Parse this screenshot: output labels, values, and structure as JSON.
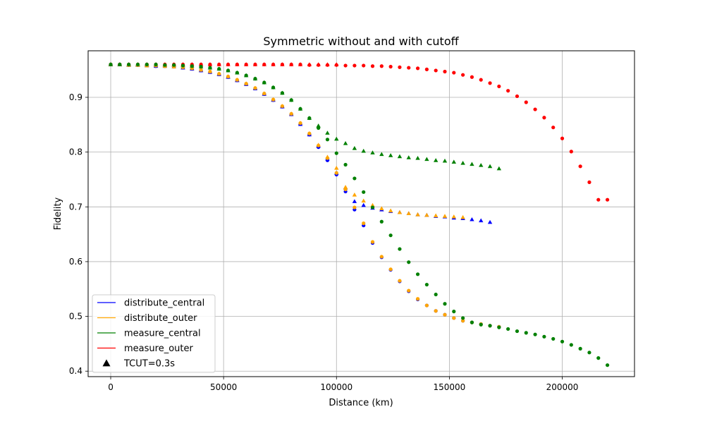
{
  "chart_data": {
    "type": "scatter",
    "title": "Symmetric without and with cutoff",
    "xlabel": "Distance (km)",
    "ylabel": "Fidelity",
    "xlim": [
      -10000,
      232000
    ],
    "ylim": [
      0.39,
      0.985
    ],
    "xticks": [
      0,
      50000,
      100000,
      150000,
      200000
    ],
    "yticks": [
      0.4,
      0.5,
      0.6,
      0.7,
      0.8,
      0.9
    ],
    "xtick_labels": [
      "0",
      "50000",
      "100000",
      "150000",
      "200000"
    ],
    "ytick_labels": [
      "0.4",
      "0.5",
      "0.6",
      "0.7",
      "0.8",
      "0.9"
    ],
    "grid": true,
    "legend_placement": "lower-left",
    "legend": [
      {
        "label": "distribute_central",
        "kind": "line",
        "color": "#0000ff"
      },
      {
        "label": "distribute_outer",
        "kind": "line",
        "color": "#ffa500"
      },
      {
        "label": "measure_central",
        "kind": "line",
        "color": "#008000"
      },
      {
        "label": "measure_outer",
        "kind": "line",
        "color": "#ff0000"
      },
      {
        "label": "TCUT=0.3s",
        "kind": "triangle",
        "color": "#000000"
      }
    ],
    "series": [
      {
        "legend": "measure_outer",
        "marker": "triangle",
        "color": "#ff0000",
        "x": [
          0,
          4000,
          8000,
          12000,
          16000,
          20000,
          24000,
          28000,
          32000,
          36000,
          40000,
          44000,
          48000,
          52000,
          56000,
          60000,
          64000,
          68000,
          72000,
          76000,
          80000,
          84000,
          88000,
          92000,
          96000,
          100000
        ],
        "y": [
          0.96,
          0.96,
          0.96,
          0.96,
          0.96,
          0.96,
          0.96,
          0.96,
          0.96,
          0.96,
          0.96,
          0.96,
          0.96,
          0.96,
          0.96,
          0.96,
          0.96,
          0.96,
          0.96,
          0.96,
          0.96,
          0.96,
          0.96,
          0.96,
          0.96,
          0.96
        ]
      },
      {
        "legend": "distribute_central",
        "marker": "triangle",
        "color": "#0000ff",
        "x": [
          0,
          4000,
          8000,
          12000,
          16000,
          20000,
          24000,
          28000,
          32000,
          36000,
          40000,
          44000,
          48000,
          52000,
          56000,
          60000,
          64000,
          68000,
          72000,
          76000,
          80000,
          84000,
          88000,
          92000,
          96000,
          100000,
          104000,
          108000,
          112000,
          116000,
          120000,
          124000,
          128000,
          132000,
          136000,
          140000,
          144000,
          148000,
          152000,
          156000,
          160000,
          164000,
          168000
        ],
        "y": [
          0.96,
          0.96,
          0.959,
          0.959,
          0.958,
          0.957,
          0.957,
          0.956,
          0.954,
          0.952,
          0.949,
          0.946,
          0.942,
          0.937,
          0.931,
          0.924,
          0.916,
          0.906,
          0.895,
          0.883,
          0.869,
          0.851,
          0.832,
          0.811,
          0.788,
          0.762,
          0.735,
          0.71,
          0.703,
          0.698,
          0.695,
          0.692,
          0.69,
          0.688,
          0.686,
          0.685,
          0.683,
          0.682,
          0.68,
          0.679,
          0.677,
          0.675,
          0.672
        ]
      },
      {
        "legend": "distribute_outer",
        "marker": "triangle",
        "color": "#ffa500",
        "x": [
          0,
          4000,
          8000,
          12000,
          16000,
          20000,
          24000,
          28000,
          32000,
          36000,
          40000,
          44000,
          48000,
          52000,
          56000,
          60000,
          64000,
          68000,
          72000,
          76000,
          80000,
          84000,
          88000,
          92000,
          96000,
          100000,
          104000,
          108000,
          112000,
          116000,
          120000,
          124000,
          128000,
          132000,
          136000,
          140000,
          144000,
          148000,
          152000,
          156000
        ],
        "y": [
          0.96,
          0.96,
          0.959,
          0.959,
          0.958,
          0.958,
          0.957,
          0.956,
          0.955,
          0.953,
          0.95,
          0.947,
          0.943,
          0.938,
          0.932,
          0.925,
          0.917,
          0.907,
          0.896,
          0.884,
          0.87,
          0.853,
          0.834,
          0.813,
          0.791,
          0.771,
          0.736,
          0.722,
          0.711,
          0.703,
          0.697,
          0.693,
          0.69,
          0.688,
          0.686,
          0.685,
          0.684,
          0.683,
          0.682,
          0.681
        ]
      },
      {
        "legend": "measure_central",
        "marker": "triangle",
        "color": "#008000",
        "x": [
          0,
          4000,
          8000,
          12000,
          16000,
          20000,
          24000,
          28000,
          32000,
          36000,
          40000,
          44000,
          48000,
          52000,
          56000,
          60000,
          64000,
          68000,
          72000,
          76000,
          80000,
          84000,
          88000,
          92000,
          96000,
          100000,
          104000,
          108000,
          112000,
          116000,
          120000,
          124000,
          128000,
          132000,
          136000,
          140000,
          144000,
          148000,
          152000,
          156000,
          160000,
          164000,
          168000,
          172000
        ],
        "y": [
          0.96,
          0.96,
          0.96,
          0.96,
          0.96,
          0.96,
          0.959,
          0.959,
          0.958,
          0.957,
          0.956,
          0.954,
          0.952,
          0.949,
          0.945,
          0.94,
          0.934,
          0.927,
          0.918,
          0.908,
          0.895,
          0.879,
          0.862,
          0.848,
          0.835,
          0.824,
          0.816,
          0.807,
          0.802,
          0.799,
          0.796,
          0.794,
          0.792,
          0.79,
          0.789,
          0.787,
          0.785,
          0.784,
          0.782,
          0.78,
          0.778,
          0.776,
          0.774,
          0.77
        ]
      },
      {
        "legend": "measure_outer",
        "marker": "circle",
        "color": "#ff0000",
        "x": [
          0,
          4000,
          8000,
          12000,
          16000,
          20000,
          24000,
          28000,
          32000,
          36000,
          40000,
          44000,
          48000,
          52000,
          56000,
          60000,
          64000,
          68000,
          72000,
          76000,
          80000,
          84000,
          88000,
          92000,
          96000,
          100000,
          104000,
          108000,
          112000,
          116000,
          120000,
          124000,
          128000,
          132000,
          136000,
          140000,
          144000,
          148000,
          152000,
          156000,
          160000,
          164000,
          168000,
          172000,
          176000,
          180000,
          184000,
          188000,
          192000,
          196000,
          200000,
          204000,
          208000,
          212000,
          216000,
          220000
        ],
        "y": [
          0.96,
          0.96,
          0.96,
          0.96,
          0.96,
          0.96,
          0.96,
          0.96,
          0.96,
          0.96,
          0.96,
          0.96,
          0.96,
          0.96,
          0.96,
          0.96,
          0.96,
          0.96,
          0.96,
          0.96,
          0.96,
          0.96,
          0.959,
          0.959,
          0.959,
          0.959,
          0.958,
          0.958,
          0.958,
          0.957,
          0.957,
          0.956,
          0.955,
          0.954,
          0.953,
          0.951,
          0.949,
          0.947,
          0.945,
          0.941,
          0.937,
          0.932,
          0.926,
          0.92,
          0.912,
          0.902,
          0.891,
          0.878,
          0.863,
          0.845,
          0.825,
          0.801,
          0.774,
          0.745,
          0.713,
          0.713
        ]
      },
      {
        "legend": "distribute_central",
        "marker": "circle",
        "color": "#0000ff",
        "x": [
          0,
          4000,
          8000,
          12000,
          16000,
          20000,
          24000,
          28000,
          32000,
          36000,
          40000,
          44000,
          48000,
          52000,
          56000,
          60000,
          64000,
          68000,
          72000,
          76000,
          80000,
          84000,
          88000,
          92000,
          96000,
          100000,
          104000,
          108000,
          112000,
          116000,
          120000,
          124000,
          128000,
          132000,
          136000,
          140000,
          144000,
          148000,
          152000,
          156000,
          160000,
          164000,
          168000,
          172000
        ],
        "y": [
          0.96,
          0.96,
          0.959,
          0.959,
          0.958,
          0.957,
          0.957,
          0.956,
          0.954,
          0.952,
          0.949,
          0.946,
          0.942,
          0.937,
          0.931,
          0.924,
          0.916,
          0.906,
          0.895,
          0.883,
          0.869,
          0.851,
          0.832,
          0.809,
          0.785,
          0.759,
          0.728,
          0.695,
          0.666,
          0.634,
          0.608,
          0.585,
          0.564,
          0.546,
          0.531,
          0.52,
          0.51,
          0.503,
          0.497,
          0.492,
          0.489,
          0.486,
          0.483,
          0.481
        ]
      },
      {
        "legend": "distribute_outer",
        "marker": "circle",
        "color": "#ffa500",
        "x": [
          0,
          4000,
          8000,
          12000,
          16000,
          20000,
          24000,
          28000,
          32000,
          36000,
          40000,
          44000,
          48000,
          52000,
          56000,
          60000,
          64000,
          68000,
          72000,
          76000,
          80000,
          84000,
          88000,
          92000,
          96000,
          100000,
          104000,
          108000,
          112000,
          116000,
          120000,
          124000,
          128000,
          132000,
          136000,
          140000,
          144000,
          148000,
          152000,
          156000,
          160000,
          164000,
          168000,
          172000
        ],
        "y": [
          0.96,
          0.96,
          0.959,
          0.959,
          0.958,
          0.958,
          0.957,
          0.956,
          0.955,
          0.953,
          0.95,
          0.947,
          0.943,
          0.938,
          0.932,
          0.925,
          0.917,
          0.907,
          0.896,
          0.884,
          0.87,
          0.853,
          0.834,
          0.812,
          0.789,
          0.762,
          0.732,
          0.699,
          0.67,
          0.636,
          0.609,
          0.586,
          0.565,
          0.547,
          0.532,
          0.52,
          0.51,
          0.503,
          0.497,
          0.492,
          0.489,
          0.486,
          0.483,
          0.481
        ]
      },
      {
        "legend": "measure_central",
        "marker": "circle",
        "color": "#008000",
        "x": [
          0,
          4000,
          8000,
          12000,
          16000,
          20000,
          24000,
          28000,
          32000,
          36000,
          40000,
          44000,
          48000,
          52000,
          56000,
          60000,
          64000,
          68000,
          72000,
          76000,
          80000,
          84000,
          88000,
          92000,
          96000,
          100000,
          104000,
          108000,
          112000,
          116000,
          120000,
          124000,
          128000,
          132000,
          136000,
          140000,
          144000,
          148000,
          152000,
          156000,
          160000,
          164000,
          168000,
          172000,
          176000,
          180000,
          184000,
          188000,
          192000,
          196000,
          200000,
          204000,
          208000,
          212000,
          216000,
          220000
        ],
        "y": [
          0.96,
          0.96,
          0.96,
          0.96,
          0.96,
          0.96,
          0.959,
          0.959,
          0.958,
          0.957,
          0.956,
          0.954,
          0.952,
          0.949,
          0.945,
          0.94,
          0.934,
          0.927,
          0.918,
          0.908,
          0.895,
          0.879,
          0.862,
          0.844,
          0.823,
          0.798,
          0.777,
          0.752,
          0.727,
          0.699,
          0.673,
          0.648,
          0.623,
          0.599,
          0.577,
          0.558,
          0.54,
          0.523,
          0.509,
          0.497,
          0.489,
          0.485,
          0.483,
          0.48,
          0.477,
          0.473,
          0.47,
          0.467,
          0.463,
          0.459,
          0.454,
          0.448,
          0.441,
          0.434,
          0.424,
          0.411
        ]
      }
    ]
  }
}
